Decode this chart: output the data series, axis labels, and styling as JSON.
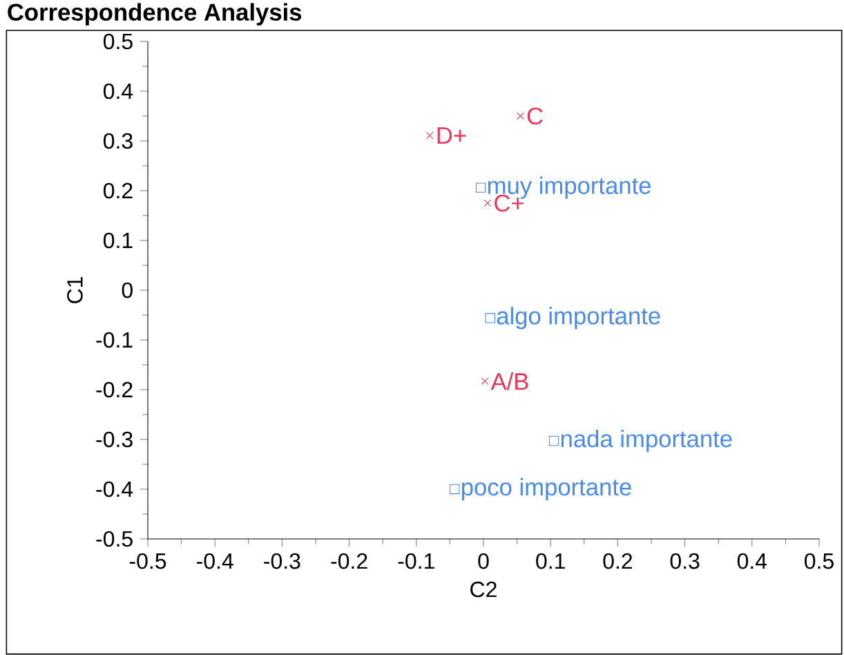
{
  "chart_data": {
    "type": "scatter",
    "title": "Correspondence Analysis",
    "xlabel": "C2",
    "ylabel": "C1",
    "series": [
      {
        "color": "#e8365e",
        "marker": "cross",
        "x": [
          0.055,
          -0.08,
          0.006,
          0.002
        ],
        "values": [
          0.35,
          0.311,
          0.175,
          -0.183
        ]
      },
      {
        "color": "#4a8ae8",
        "marker": "square",
        "x": [
          -0.004,
          0.01,
          0.105,
          -0.043
        ],
        "values": [
          0.206,
          -0.056,
          -0.303,
          -0.4
        ]
      }
    ],
    "annotations": [
      {
        "text": "C",
        "x": 0.055,
        "y": 0.35
      },
      {
        "text": "D+",
        "x": -0.08,
        "y": 0.311
      },
      {
        "text": "C+",
        "x": 0.006,
        "y": 0.175
      },
      {
        "text": "A/B",
        "x": 0.002,
        "y": -0.183
      },
      {
        "text": "muy importante",
        "x": -0.004,
        "y": 0.206
      },
      {
        "text": "algo importante",
        "x": 0.01,
        "y": -0.056
      },
      {
        "text": "nada importante",
        "x": 0.105,
        "y": -0.303
      },
      {
        "text": "poco importante",
        "x": -0.043,
        "y": -0.4
      }
    ],
    "xlim": [
      -0.5,
      0.5
    ],
    "ylim": [
      -0.5,
      0.5
    ],
    "xticks": [
      -0.5,
      -0.4,
      -0.3,
      -0.2,
      -0.1,
      0,
      0.1,
      0.2,
      0.3,
      0.4,
      0.5
    ],
    "yticks": [
      -0.5,
      -0.4,
      -0.3,
      -0.2,
      -0.1,
      0,
      0.1,
      0.2,
      0.3,
      0.4,
      0.5
    ]
  }
}
